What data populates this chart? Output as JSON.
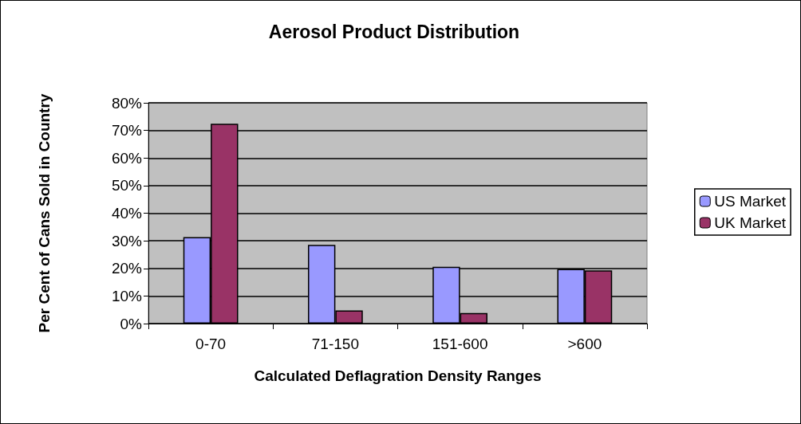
{
  "chart_data": {
    "type": "bar",
    "title": "Aerosol Product Distribution",
    "xlabel": "Calculated Deflagration Density Ranges",
    "ylabel": "Per Cent of Cans Sold in Country",
    "categories": [
      "0-70",
      "71-150",
      "151-600",
      ">600"
    ],
    "series": [
      {
        "name": "US Market",
        "color": "#9999ff",
        "values": [
          31.3,
          28.5,
          20.6,
          19.8
        ]
      },
      {
        "name": "UK Market",
        "color": "#993366",
        "values": [
          72.4,
          4.8,
          3.8,
          19.3
        ]
      }
    ],
    "ylim": [
      0,
      80
    ],
    "yticks": [
      {
        "value": 0,
        "label": "0%"
      },
      {
        "value": 10,
        "label": "10%"
      },
      {
        "value": 20,
        "label": "20%"
      },
      {
        "value": 30,
        "label": "30%"
      },
      {
        "value": 40,
        "label": "40%"
      },
      {
        "value": 50,
        "label": "50%"
      },
      {
        "value": 60,
        "label": "60%"
      },
      {
        "value": 70,
        "label": "70%"
      },
      {
        "value": 80,
        "label": "80%"
      }
    ],
    "grid": "y",
    "legend": "right"
  }
}
